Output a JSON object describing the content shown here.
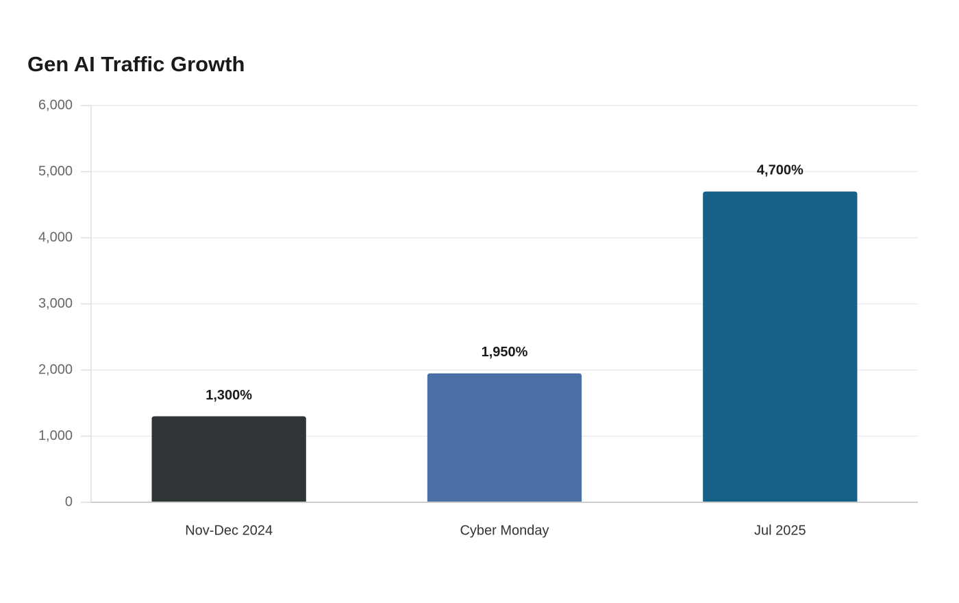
{
  "chart_data": {
    "type": "bar",
    "title": "Gen AI Traffic Growth",
    "categories": [
      "Nov-Dec 2024",
      "Cyber Monday",
      "Jul 2025"
    ],
    "values": [
      1300,
      1950,
      4700
    ],
    "value_labels": [
      "1,300%",
      "1,950%",
      "4,700%"
    ],
    "colors": [
      "#2f3437",
      "#4a6fa5",
      "#176087"
    ],
    "ylim": [
      0,
      6000
    ],
    "yticks": [
      0,
      {
        "value": 1000,
        "label": "1,000"
      },
      {
        "value": 2000,
        "label": "2,000"
      },
      {
        "value": 3000,
        "label": "3,000"
      },
      {
        "value": 4000,
        "label": "4,000"
      },
      {
        "value": 5000,
        "label": "5,000"
      },
      {
        "value": 6000,
        "label": "6,000"
      }
    ],
    "grid": true
  }
}
